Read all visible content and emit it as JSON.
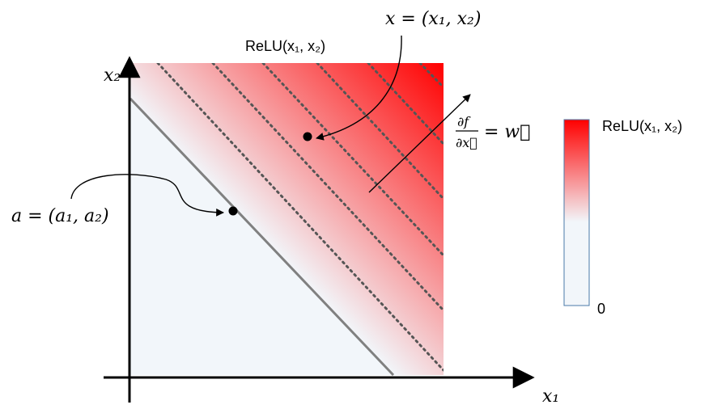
{
  "colors": {
    "red": "#ff0000",
    "pale": "#f2f6fa",
    "line": "#808080",
    "dots": "#555555",
    "axis": "#000000",
    "colorbar_border": "#4a7aa8"
  },
  "labels": {
    "axis_x1": "x₁",
    "axis_x2": "x₂",
    "point_a": "a = (a₁, a₂)",
    "point_x": "x = (x₁, x₂)",
    "relu_label": "ReLU(x₁, x₂)",
    "gradient_num": "∂f",
    "gradient_den": "∂x⃗",
    "gradient_rhs": "= w⃗",
    "colorbar_top": "ReLU(x₁, x₂)",
    "colorbar_bottom": "0"
  }
}
